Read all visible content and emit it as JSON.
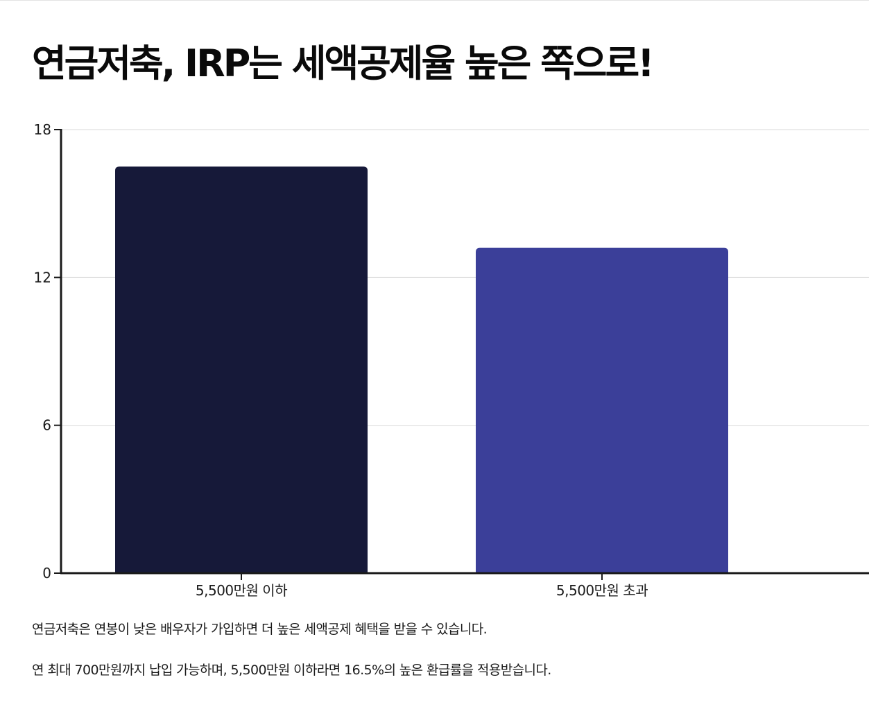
{
  "title": "연금저축, IRP는 세액공제율 높은 쪽으로!",
  "chart_data": {
    "type": "bar",
    "categories": [
      "5,500만원 이하",
      "5,500만원 초과"
    ],
    "values": [
      16.5,
      13.2
    ],
    "colors": [
      "#161939",
      "#3b3f99"
    ],
    "ylim": [
      0,
      18
    ],
    "yticks": [
      0,
      6,
      12,
      18
    ],
    "ytick_labels": [
      "0",
      "6",
      "12",
      "18"
    ],
    "grid": true,
    "legend": "none",
    "xlabel": "",
    "ylabel": ""
  },
  "captions": [
    "연금저축은 연봉이 낮은 배우자가 가입하면 더 높은 세액공제 혜택을 받을 수 있습니다.",
    "연 최대 700만원까지 납입 가능하며, 5,500만원 이하라면 16.5%의 높은 환급률을 적용받습니다."
  ]
}
